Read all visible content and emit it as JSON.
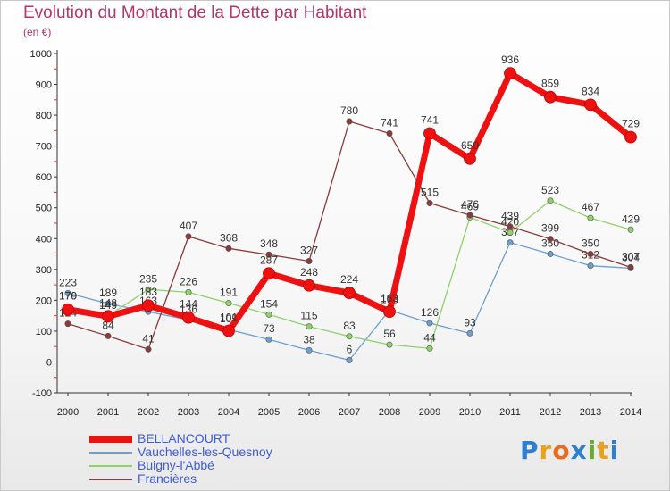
{
  "title": "Evolution du Montant de la Dette par Habitant",
  "subtitle": "(en €)",
  "brand": {
    "letters": [
      "P",
      "r",
      "o",
      "x",
      "i",
      "t",
      "i"
    ],
    "colors": [
      "#2f7fd0",
      "#e8a21c",
      "#ea6a1f",
      "#2f7fd0",
      "#6aa936",
      "#e8a21c",
      "#2f7fd0"
    ]
  },
  "chart_data": {
    "type": "line",
    "title": "Evolution du Montant de la Dette par Habitant",
    "subtitle": "(en €)",
    "xlabel": "",
    "ylabel": "",
    "x": [
      "2000",
      "2001",
      "2002",
      "2003",
      "2004",
      "2005",
      "2006",
      "2007",
      "2008",
      "2009",
      "2010",
      "2011",
      "2012",
      "2013",
      "2014"
    ],
    "ylim": [
      -100,
      1000
    ],
    "yticks": [
      "-100",
      "0",
      "100",
      "200",
      "300",
      "400",
      "500",
      "600",
      "700",
      "800",
      "900",
      "1000"
    ],
    "grid": false,
    "legend_position": "bottom-left",
    "series": [
      {
        "name": "BELLANCOURT",
        "color": "#ee1111",
        "values": [
          170,
          148,
          183,
          144,
          101,
          287,
          248,
          224,
          163,
          741,
          659,
          936,
          859,
          834,
          729
        ],
        "labels": [
          "170",
          "148",
          "183",
          "144",
          "101",
          "287",
          "248",
          "224",
          "163",
          "741",
          "659",
          "936",
          "859",
          "834",
          "729"
        ]
      },
      {
        "name": "Vauchelles-les-Quesnoy",
        "color": "#6e9fcf",
        "values": [
          223,
          189,
          163,
          136,
          105,
          73,
          38,
          6,
          168,
          126,
          93,
          387,
          350,
          312,
          304
        ],
        "labels": [
          "223",
          "189",
          "163",
          "136",
          "105",
          "73",
          "38",
          "6",
          "168",
          "126",
          "93",
          "387",
          "350",
          "312",
          "304"
        ]
      },
      {
        "name": "Buigny-l'Abbé",
        "color": "#8fd16a",
        "values": [
          179,
          149,
          235,
          226,
          191,
          154,
          115,
          83,
          56,
          44,
          469,
          420,
          523,
          467,
          429
        ],
        "labels": [
          "179",
          "149",
          "235",
          "226",
          "191",
          "154",
          "115",
          "83",
          "56",
          "44",
          "469",
          "420",
          "523",
          "467",
          "429"
        ]
      },
      {
        "name": "Francières",
        "color": "#8a3a3a",
        "values": [
          124,
          84,
          41,
          407,
          368,
          348,
          327,
          780,
          741,
          515,
          476,
          439,
          399,
          350,
          307
        ],
        "labels": [
          "124",
          "84",
          "41",
          "407",
          "368",
          "348",
          "327",
          "780",
          "741",
          "515",
          "476",
          "439",
          "399",
          "350",
          "307"
        ]
      }
    ]
  }
}
